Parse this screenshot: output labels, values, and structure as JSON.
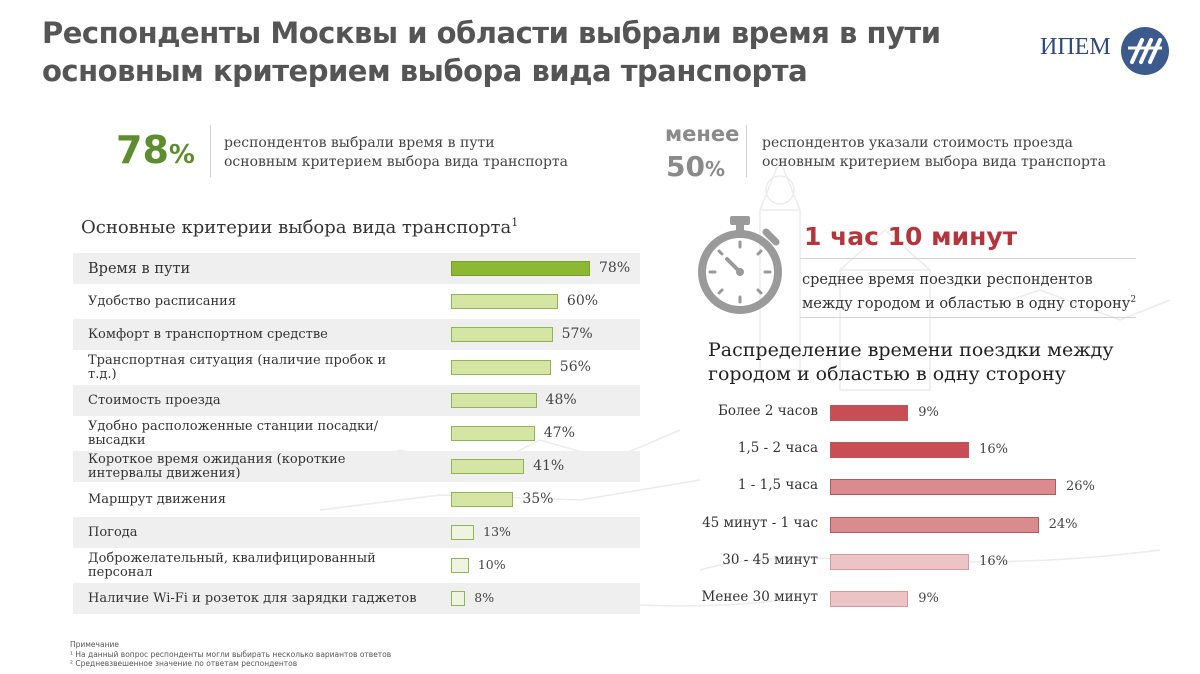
{
  "title_line1": "Респонденты Москвы и области выбрали время в пути",
  "title_line2": "основным критерием выбора вида транспорта",
  "logo_text": "ИПЕМ",
  "stat_time": {
    "value": "78",
    "unit": "%",
    "text_line1": "респондентов выбрали время в пути",
    "text_line2": "основным критерием выбора вида транспорта"
  },
  "stat_cost": {
    "prefix": "менее",
    "value": "50",
    "unit": "%",
    "text_line1": "респондентов указали стоимость проезда",
    "text_line2": "основным критерием выбора вида транспорта"
  },
  "avg_time": {
    "value": "1 час 10 минут",
    "text_line1": "среднее время поездки респондентов",
    "text_line2": "между городом и областью в одну сторону",
    "footnote_mark": "2"
  },
  "notes": {
    "heading": "Примечание",
    "n1": "¹ На данный вопрос респонденты могли выбирать несколько вариантов ответов",
    "n2": "² Средневзвешенное значение по ответам респондентов"
  },
  "colors": {
    "green_dark": "#8cb834",
    "green_light": "#d4e5a4",
    "green_pale": "#eef4e0",
    "red_dark": "#c84d54",
    "red_mid": "#d98b8e",
    "red_light": "#edc4c6",
    "accent_green": "#5e8c31",
    "accent_red": "#b5353d"
  },
  "chart_data": [
    {
      "type": "bar",
      "orientation": "horizontal",
      "title": "Основные критерии выбора вида транспорта",
      "title_footnote": "1",
      "unit": "%",
      "xlim": [
        0,
        100
      ],
      "categories": [
        "Время в пути",
        "Удобство расписания",
        "Комфорт в транспортном средстве",
        "Транспортная ситуация (наличие пробок и т.д.)",
        "Стоимость проезда",
        "Удобно расположенные станции посадки/высадки",
        "Короткое время ожидания (короткие интервалы движения)",
        "Маршрут движения",
        "Погода",
        "Доброжелательный, квалифицированный персонал",
        "Наличие Wi-Fi и розеток для зарядки гаджетов"
      ],
      "values": [
        78,
        60,
        57,
        56,
        48,
        47,
        41,
        35,
        13,
        10,
        8
      ],
      "value_labels": [
        "78%",
        "60%",
        "57%",
        "56%",
        "48%",
        "47%",
        "41%",
        "35%",
        "13%",
        "10%",
        "8%"
      ]
    },
    {
      "type": "bar",
      "orientation": "horizontal",
      "title": "Распределение времени поездки между городом и областью в одну сторону",
      "unit": "%",
      "xlim": [
        0,
        30
      ],
      "categories": [
        "Более 2 часов",
        "1,5 - 2 часа",
        "1 - 1,5 часа",
        "45 минут - 1 час",
        "30 - 45 минут",
        "Менее 30 минут"
      ],
      "values": [
        9,
        16,
        26,
        24,
        16,
        9
      ],
      "value_labels": [
        "9%",
        "16%",
        "26%",
        "24%",
        "16%",
        "9%"
      ]
    }
  ]
}
